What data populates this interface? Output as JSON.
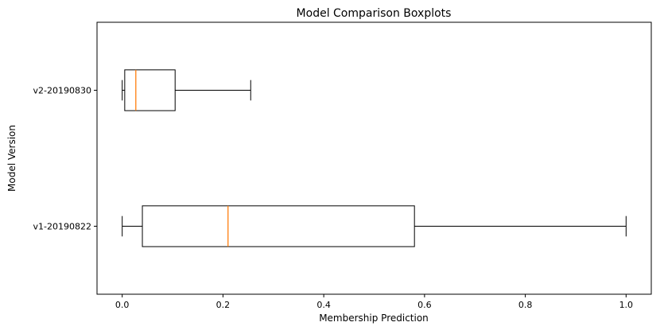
{
  "chart_data": {
    "type": "boxplot",
    "orientation": "horizontal",
    "title": "Model Comparison Boxplots",
    "xlabel": "Membership Prediction",
    "ylabel": "Model Version",
    "xlim": [
      -0.05,
      1.05
    ],
    "xticks": [
      0.0,
      0.2,
      0.4,
      0.6,
      0.8,
      1.0
    ],
    "xtick_labels": [
      "0.0",
      "0.2",
      "0.4",
      "0.6",
      "0.8",
      "1.0"
    ],
    "categories": [
      "v1-20190822",
      "v2-20190830"
    ],
    "series": [
      {
        "name": "v1-20190822",
        "whisker_low": 0.0,
        "q1": 0.04,
        "median": 0.21,
        "q3": 0.58,
        "whisker_high": 1.0
      },
      {
        "name": "v2-20190830",
        "whisker_low": 0.0,
        "q1": 0.005,
        "median": 0.027,
        "q3": 0.105,
        "whisker_high": 0.255
      }
    ],
    "grid": false,
    "colors": {
      "box": "#000000",
      "median": "#ff7f0e",
      "whisker": "#000000"
    }
  }
}
